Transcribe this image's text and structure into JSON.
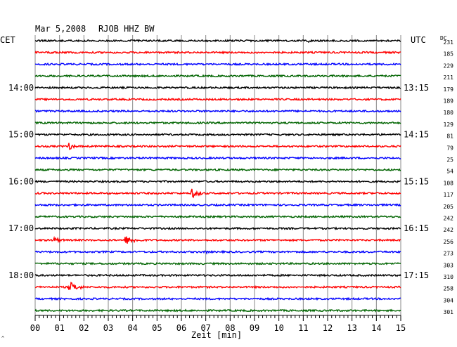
{
  "header": {
    "date": "Mar 5,2008",
    "station": "RJOB HHZ BW",
    "left_timezone": "CET",
    "right_timezone": "UTC",
    "dc_label": "DC"
  },
  "chart_data": {
    "type": "line",
    "title": "Mar 5,2008  RJOB HHZ BW",
    "xlabel": "Zeit [min]",
    "x_ticks": [
      "00",
      "01",
      "02",
      "03",
      "04",
      "05",
      "06",
      "07",
      "08",
      "09",
      "10",
      "11",
      "12",
      "13",
      "14",
      "15"
    ],
    "xlim": [
      0,
      15
    ],
    "grid": true,
    "trace_colors": [
      "#000000",
      "#ff0000",
      "#0000ff",
      "#006400"
    ],
    "left_hour_labels": [
      "14:00",
      "15:00",
      "16:00",
      "17:00",
      "18:00"
    ],
    "right_hour_labels": [
      "13:15",
      "14:15",
      "15:15",
      "16:15",
      "17:15"
    ],
    "dc_offsets": [
      231,
      185,
      229,
      211,
      179,
      189,
      180,
      129,
      81,
      79,
      25,
      54,
      108,
      117,
      205,
      242,
      242,
      256,
      273,
      303,
      310,
      258,
      304,
      301
    ],
    "events": [
      {
        "trace": 0,
        "minute": 11.2,
        "amplitude": 2.5,
        "duration": 0.8
      },
      {
        "trace": 1,
        "minute": 1.2,
        "amplitude": 2.0,
        "duration": 0.4
      },
      {
        "trace": 9,
        "minute": 1.4,
        "amplitude": 6.0,
        "duration": 0.5
      },
      {
        "trace": 13,
        "minute": 6.4,
        "amplitude": 7.5,
        "duration": 0.9
      },
      {
        "trace": 17,
        "minute": 0.7,
        "amplitude": 5.0,
        "duration": 1.0
      },
      {
        "trace": 17,
        "minute": 3.7,
        "amplitude": 6.5,
        "duration": 1.2
      },
      {
        "trace": 18,
        "minute": 7.0,
        "amplitude": 4.0,
        "duration": 0.2
      },
      {
        "trace": 21,
        "minute": 1.4,
        "amplitude": 8.0,
        "duration": 1.0
      }
    ]
  }
}
